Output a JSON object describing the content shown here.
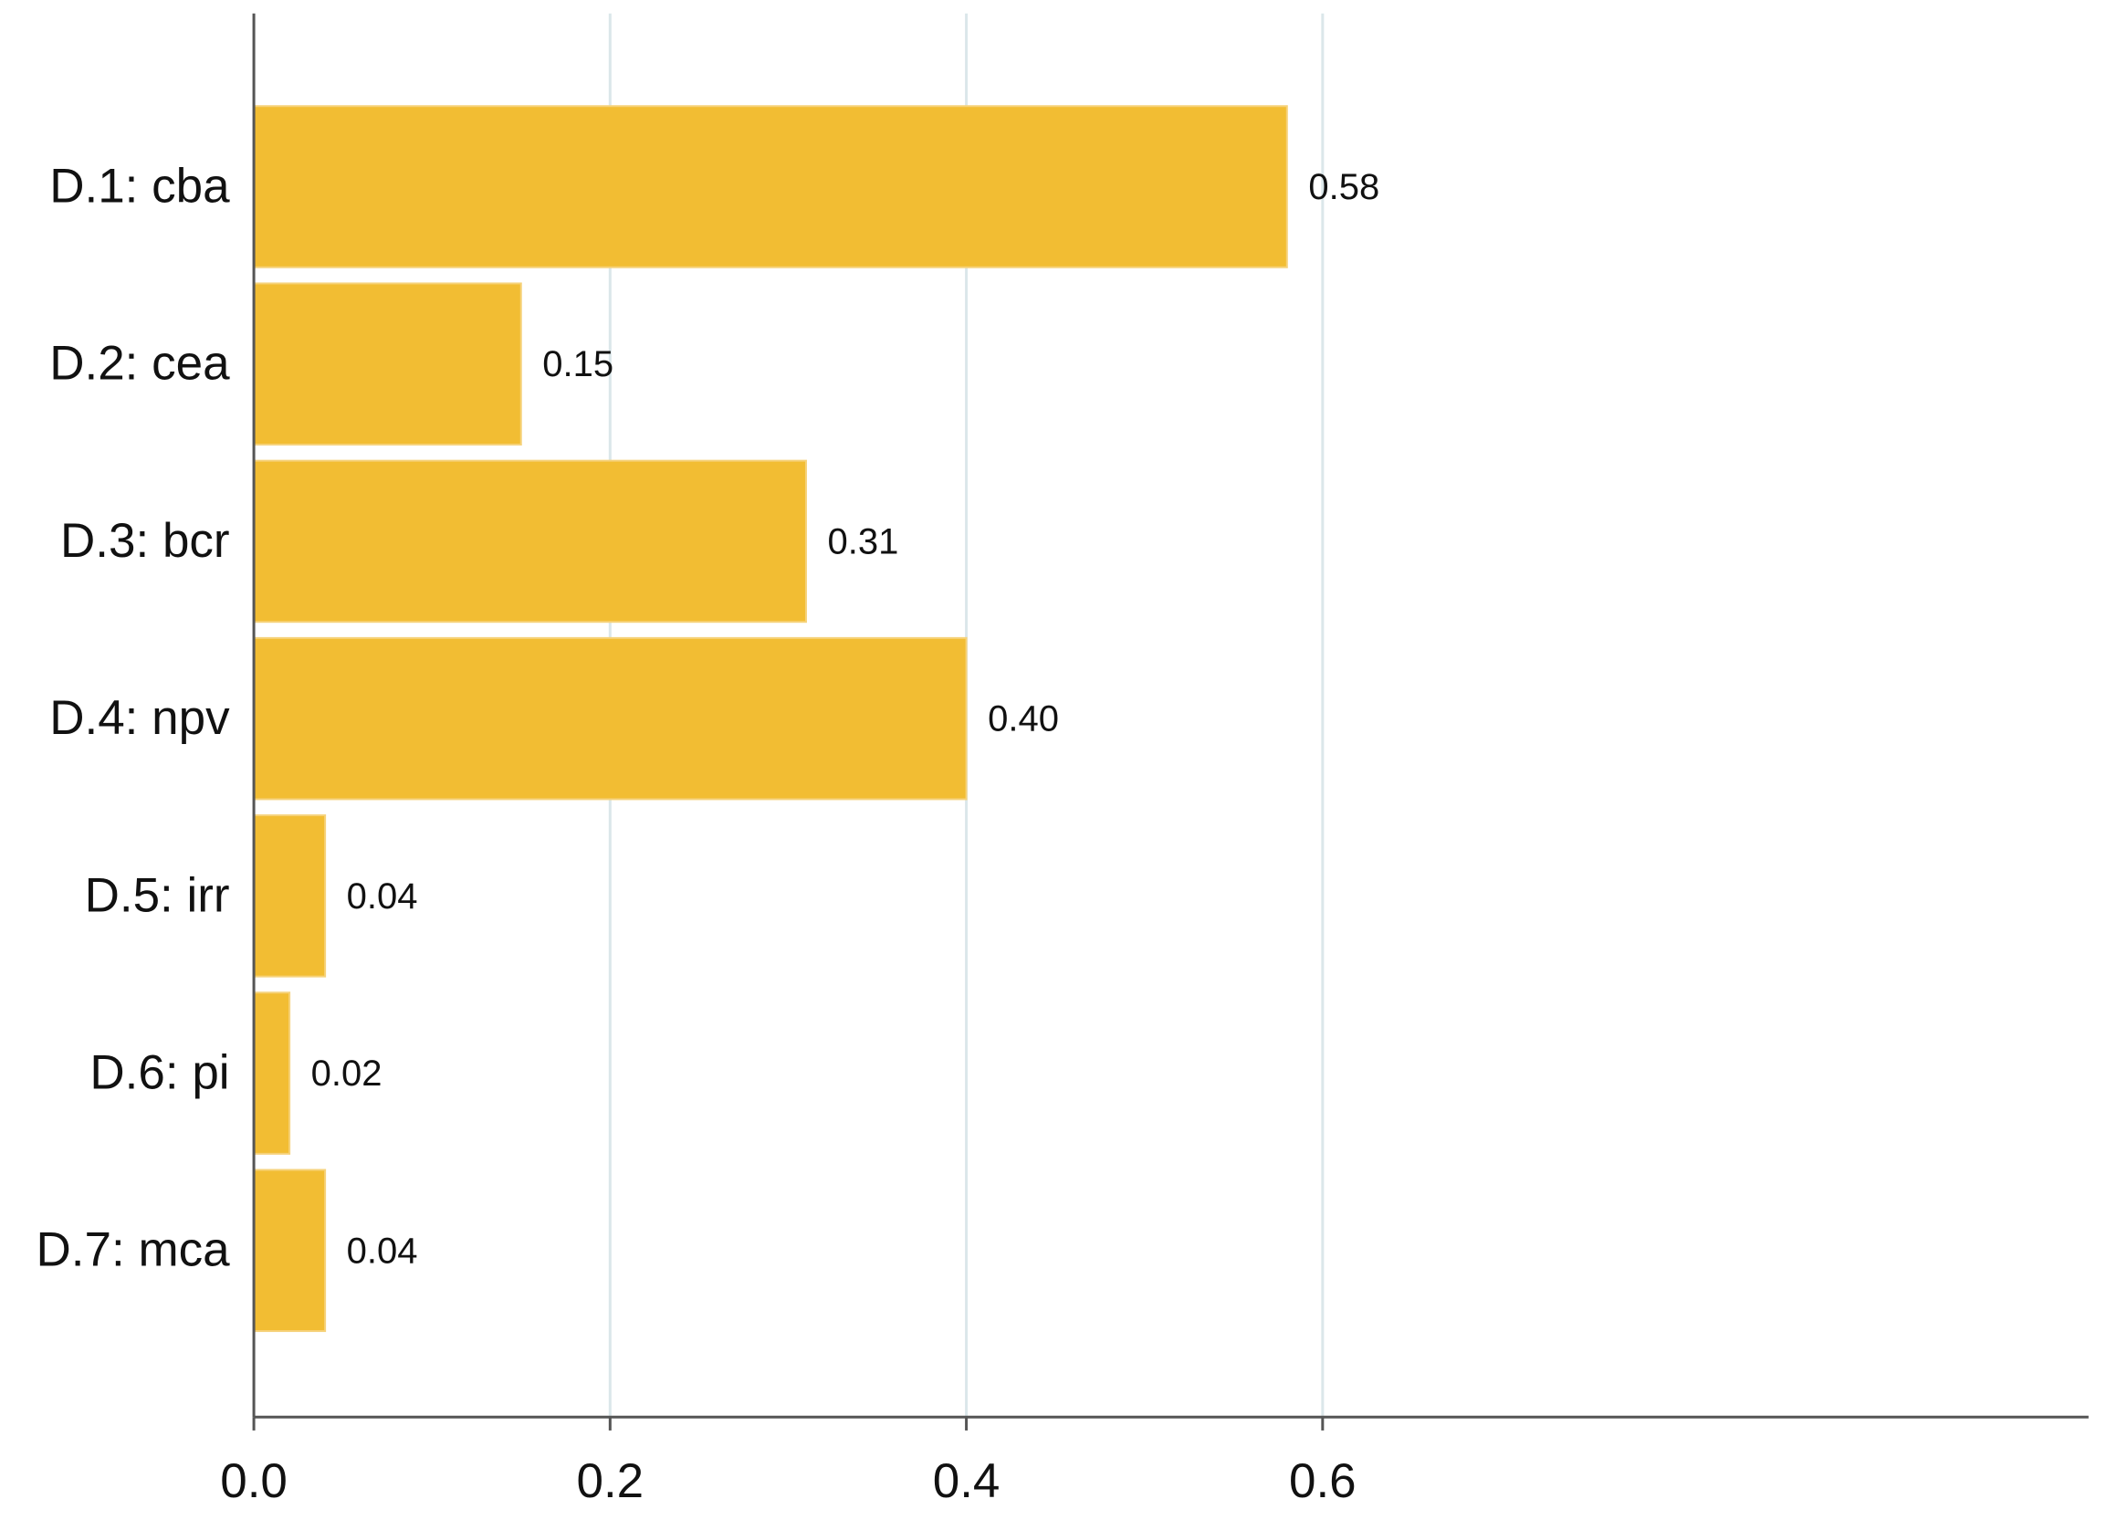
{
  "chart_data": {
    "type": "barh",
    "categories": [
      "D.1: cba",
      "D.2: cea",
      "D.3: bcr",
      "D.4: npv",
      "D.5: irr",
      "D.6: pi",
      "D.7: mca"
    ],
    "values": [
      0.58,
      0.15,
      0.31,
      0.4,
      0.04,
      0.02,
      0.04
    ],
    "value_labels": [
      "0.58",
      "0.15",
      "0.31",
      "0.40",
      "0.04",
      "0.02",
      "0.04"
    ],
    "color": "#f2bd33",
    "xlim": [
      0,
      1.03
    ],
    "xticks": [
      {
        "value": 0,
        "label": "0.0"
      },
      0.2,
      0.4,
      0.6
    ],
    "grid": true
  }
}
